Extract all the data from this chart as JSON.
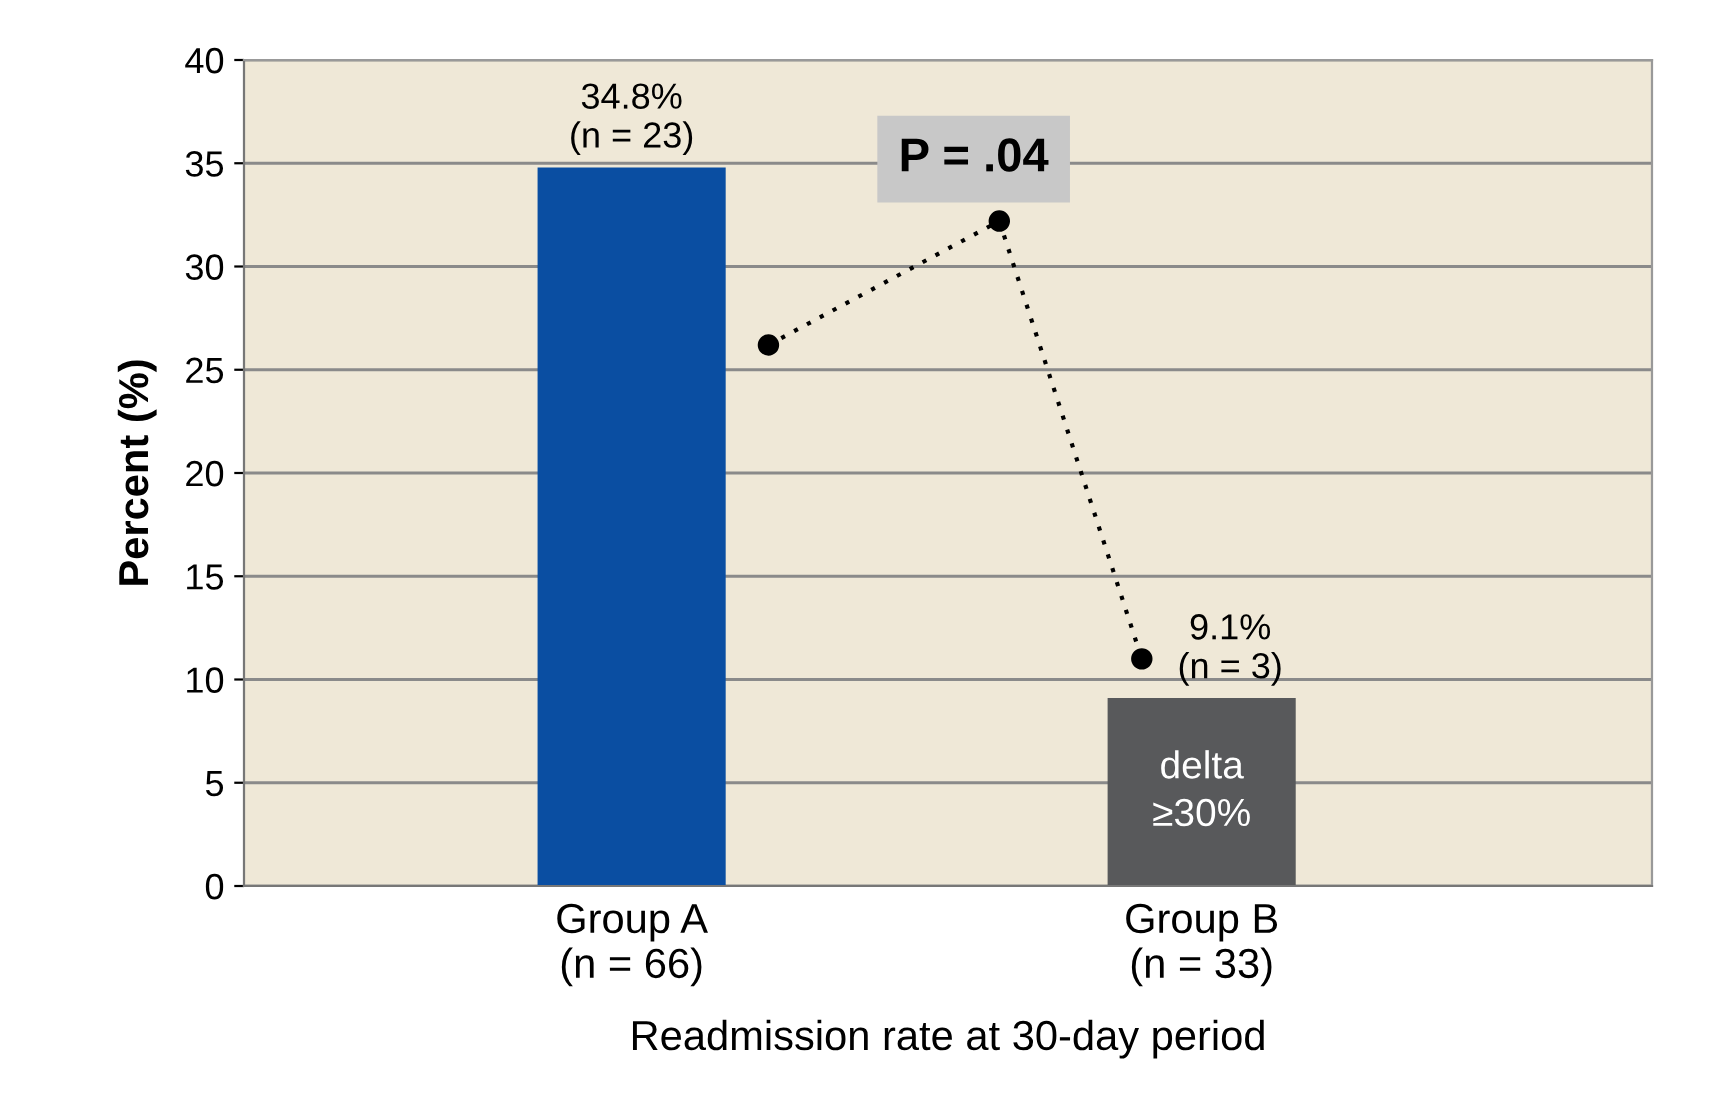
{
  "chart_data": {
    "type": "bar",
    "categories": [
      "Group A\n(n = 66)",
      "Group B\n(n = 33)"
    ],
    "values": [
      34.8,
      9.1
    ],
    "colors": [
      "#0a4ea2",
      "#58595b"
    ],
    "value_labels": [
      "34.8%\n(n = 23)",
      "9.1%\n(n = 3)"
    ],
    "ylabel": "Percent (%)",
    "xlabel": "Readmission rate at 30-day period",
    "ylim": [
      0,
      40
    ],
    "yticks": [
      0,
      5,
      10,
      15,
      20,
      25,
      30,
      35,
      40
    ],
    "grid": "y",
    "annotations": [
      "P = .04",
      "delta\n≥30%"
    ]
  }
}
